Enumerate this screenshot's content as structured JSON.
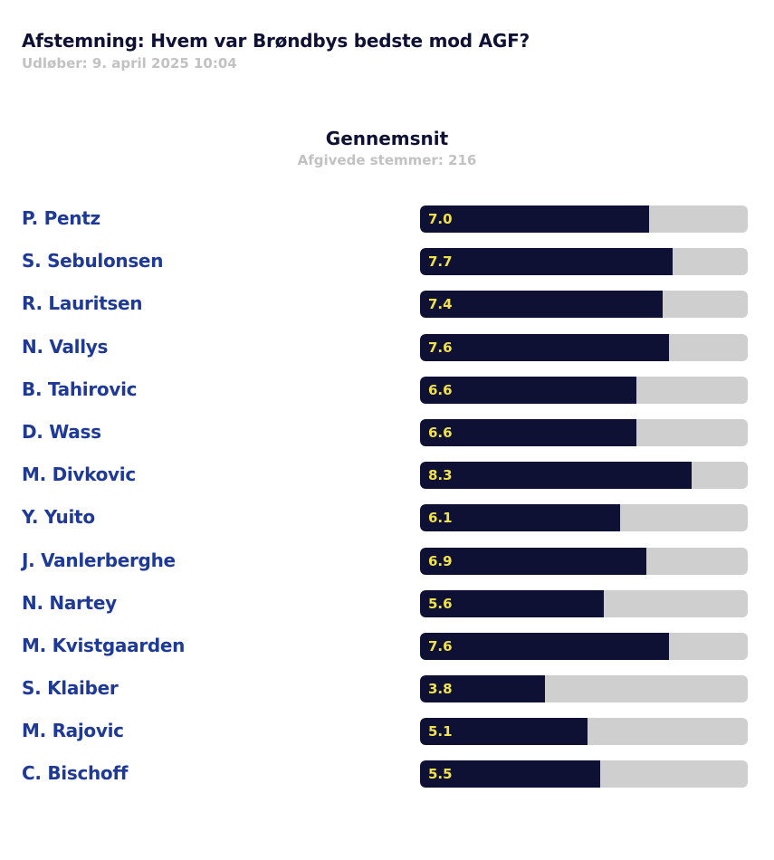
{
  "header": {
    "title": "Afstemning: Hvem var Brøndbys bedste mod AGF?",
    "expires": "Udløber: 9. april 2025 10:04"
  },
  "section": {
    "title": "Gennemsnit",
    "votes": "Afgivede stemmer: 216"
  },
  "colors": {
    "fill": "#0e1133",
    "track": "#cfcfcf",
    "value_text": "#f2e24a",
    "name_text": "#1e3a96"
  },
  "chart_data": {
    "type": "bar",
    "orientation": "horizontal",
    "xlim": [
      0,
      10
    ],
    "title": "Gennemsnit",
    "categories": [
      "P. Pentz",
      "S. Sebulonsen",
      "R. Lauritsen",
      "N. Vallys",
      "B. Tahirovic",
      "D. Wass",
      "M. Divkovic",
      "Y. Yuito",
      "J. Vanlerberghe",
      "N. Nartey",
      "M. Kvistgaarden",
      "S. Klaiber",
      "M. Rajovic",
      "C. Bischoff"
    ],
    "values": [
      7.0,
      7.7,
      7.4,
      7.6,
      6.6,
      6.6,
      8.3,
      6.1,
      6.9,
      5.6,
      7.6,
      3.8,
      5.1,
      5.5
    ],
    "value_labels": [
      "7.0",
      "7.7",
      "7.4",
      "7.6",
      "6.6",
      "6.6",
      "8.3",
      "6.1",
      "6.9",
      "5.6",
      "7.6",
      "3.8",
      "5.1",
      "5.5"
    ]
  }
}
